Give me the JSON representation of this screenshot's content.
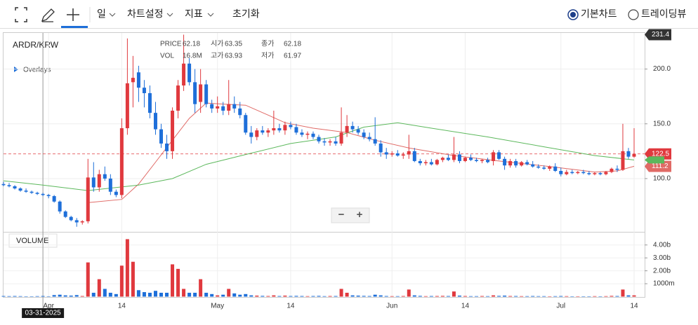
{
  "toolbar": {
    "items": [
      "일",
      "차트설정",
      "지표",
      "초기화"
    ],
    "options": [
      "기본차트",
      "트레이딩뷰"
    ]
  },
  "chart_data": {
    "type": "candlestick",
    "title": "ARDR/KRW",
    "overlays": "Overlays",
    "volume_title": "VOLUME",
    "zoom": [
      "−",
      "+"
    ],
    "up_color": "#e0393e",
    "down_color": "#1e6fd9",
    "info": [
      {
        "label": "PRICE",
        "value": 62.18
      },
      {
        "label": "시가",
        "value": 63.35
      },
      {
        "label": "종가",
        "value": 62.18
      },
      {
        "label": "VOL",
        "value": "16.8M"
      },
      {
        "label": "고가",
        "value": 63.93
      },
      {
        "label": "저가",
        "value": 61.97
      }
    ],
    "crosshair": {
      "x": "2025-03-31",
      "label": "03-31-2025"
    },
    "x": [
      "2025-03-24",
      "2025-03-25",
      "2025-03-26",
      "2025-03-27",
      "2025-03-28",
      "2025-03-29",
      "2025-03-30",
      "2025-03-31",
      "2025-04-01",
      "2025-04-02",
      "2025-04-03",
      "2025-04-04",
      "2025-04-05",
      "2025-04-06",
      "2025-04-07",
      "2025-04-08",
      "2025-04-09",
      "2025-04-10",
      "2025-04-11",
      "2025-04-12",
      "2025-04-13",
      "2025-04-14",
      "2025-04-15",
      "2025-04-16",
      "2025-04-17",
      "2025-04-18",
      "2025-04-19",
      "2025-04-20",
      "2025-04-21",
      "2025-04-22",
      "2025-04-23",
      "2025-04-24",
      "2025-04-25",
      "2025-04-26",
      "2025-04-27",
      "2025-04-28",
      "2025-04-29",
      "2025-04-30",
      "2025-05-01",
      "2025-05-02",
      "2025-05-03",
      "2025-05-04",
      "2025-05-05",
      "2025-05-06",
      "2025-05-07",
      "2025-05-08",
      "2025-05-09",
      "2025-05-10",
      "2025-05-11",
      "2025-05-12",
      "2025-05-13",
      "2025-05-14",
      "2025-05-15",
      "2025-05-16",
      "2025-05-17",
      "2025-05-18",
      "2025-05-19",
      "2025-05-20",
      "2025-05-21",
      "2025-05-22",
      "2025-05-23",
      "2025-05-24",
      "2025-05-25",
      "2025-05-26",
      "2025-05-27",
      "2025-05-28",
      "2025-05-29",
      "2025-05-30",
      "2025-05-31",
      "2025-06-01",
      "2025-06-02",
      "2025-06-03",
      "2025-06-04",
      "2025-06-05",
      "2025-06-06",
      "2025-06-07",
      "2025-06-08",
      "2025-06-09",
      "2025-06-10",
      "2025-06-11",
      "2025-06-12",
      "2025-06-13",
      "2025-06-14",
      "2025-06-15",
      "2025-06-16",
      "2025-06-17",
      "2025-06-18",
      "2025-06-19",
      "2025-06-20",
      "2025-06-21",
      "2025-06-22",
      "2025-06-23",
      "2025-06-24",
      "2025-06-25",
      "2025-06-26",
      "2025-06-27",
      "2025-06-28",
      "2025-06-29",
      "2025-06-30",
      "2025-07-01",
      "2025-07-02",
      "2025-07-03",
      "2025-07-04",
      "2025-07-05",
      "2025-07-06",
      "2025-07-07",
      "2025-07-08",
      "2025-07-09",
      "2025-07-10",
      "2025-07-11",
      "2025-07-12",
      "2025-07-13",
      "2025-07-14"
    ],
    "open": [
      95,
      94,
      93,
      91,
      89,
      88,
      87,
      86,
      85,
      84,
      79,
      70,
      65,
      62,
      60,
      61,
      101,
      92,
      104,
      100,
      88,
      85,
      146,
      188,
      197,
      183,
      178,
      160,
      145,
      132,
      125,
      162,
      185,
      205,
      188,
      170,
      186,
      168,
      164,
      166,
      162,
      168,
      164,
      158,
      142,
      138,
      144,
      142,
      144,
      146,
      144,
      149,
      147,
      142,
      140,
      141,
      138,
      134,
      133,
      134,
      132,
      142,
      148,
      145,
      142,
      138,
      136,
      132,
      124,
      122,
      123,
      121,
      122,
      125,
      116,
      114,
      115,
      113,
      117,
      119,
      117,
      122,
      116,
      119,
      117,
      116,
      117,
      116,
      124,
      118,
      112,
      116,
      112,
      115,
      113,
      111,
      110,
      109,
      111,
      107,
      104,
      106,
      105,
      106,
      105,
      104,
      105,
      104,
      106,
      109,
      108,
      125,
      120
    ],
    "high": [
      97,
      96,
      94,
      92,
      91,
      89,
      88,
      87,
      86,
      85,
      80,
      71,
      66,
      64,
      62,
      118,
      115,
      108,
      111,
      104,
      90,
      155,
      228,
      212,
      203,
      190,
      185,
      170,
      150,
      140,
      165,
      190,
      231.4,
      210,
      200,
      200,
      190,
      172,
      175,
      170,
      190,
      175,
      170,
      160,
      148,
      146,
      148,
      146,
      162,
      150,
      152,
      152,
      150,
      145,
      143,
      143,
      140,
      137,
      136,
      138,
      165,
      158,
      152,
      148,
      145,
      142,
      156,
      135,
      128,
      125,
      126,
      124,
      140,
      128,
      118,
      117,
      118,
      118,
      120,
      122,
      138,
      125,
      120,
      122,
      119,
      118,
      119,
      126,
      126,
      120,
      118,
      118,
      116,
      117,
      116,
      113,
      112,
      112,
      114,
      110,
      108,
      108,
      107,
      108,
      107,
      106,
      106,
      107,
      110,
      112,
      150,
      128,
      146
    ],
    "low": [
      93,
      92,
      90,
      88,
      87,
      86,
      85,
      84,
      82,
      78,
      68,
      64,
      61,
      56,
      58,
      59,
      88,
      88,
      98,
      85,
      83,
      82,
      140,
      165,
      170,
      165,
      155,
      140,
      128,
      118,
      118,
      155,
      180,
      185,
      160,
      160,
      165,
      160,
      160,
      158,
      158,
      160,
      155,
      140,
      132,
      135,
      140,
      138,
      140,
      142,
      140,
      145,
      140,
      138,
      136,
      136,
      132,
      130,
      130,
      130,
      130,
      138,
      142,
      140,
      136,
      134,
      130,
      120,
      118,
      120,
      120,
      118,
      118,
      115,
      112,
      112,
      112,
      112,
      115,
      116,
      115,
      114,
      115,
      116,
      115,
      114,
      114,
      112,
      117,
      108,
      110,
      110,
      111,
      112,
      110,
      109,
      108,
      107,
      106,
      102,
      103,
      104,
      104,
      104,
      103,
      103,
      103,
      103,
      105,
      106,
      107,
      118,
      119
    ],
    "close": [
      94,
      93,
      91,
      89,
      88,
      87,
      86,
      85,
      84,
      79,
      70,
      65,
      62,
      60,
      61,
      101,
      92,
      104,
      100,
      88,
      85,
      146,
      187,
      192,
      183,
      178,
      160,
      145,
      132,
      125,
      162,
      185,
      205,
      188,
      168,
      186,
      168,
      164,
      166,
      162,
      168,
      164,
      158,
      142,
      138,
      144,
      142,
      144,
      146,
      144,
      149,
      147,
      142,
      140,
      141,
      138,
      134,
      133,
      134,
      132,
      142,
      148,
      145,
      142,
      138,
      136,
      132,
      124,
      122,
      123,
      121,
      122,
      125,
      116,
      114,
      115,
      113,
      117,
      119,
      117,
      122,
      116,
      119,
      117,
      116,
      117,
      115,
      124,
      118,
      112,
      116,
      112,
      115,
      113,
      111,
      110,
      109,
      111,
      107,
      104,
      106,
      105,
      106,
      105,
      104,
      105,
      104,
      106,
      109,
      108,
      125,
      120,
      122.5
    ],
    "volume": [
      0.05,
      0.04,
      0.05,
      0.04,
      0.03,
      0.03,
      0.04,
      0.05,
      0.03,
      0.12,
      0.15,
      0.1,
      0.08,
      0.12,
      0.05,
      2.65,
      0.3,
      1.35,
      0.6,
      0.3,
      0.2,
      2.4,
      4.45,
      2.7,
      0.5,
      0.35,
      0.3,
      0.45,
      0.3,
      0.3,
      2.5,
      2.15,
      0.6,
      0.3,
      0.3,
      1.35,
      0.3,
      0.2,
      0.1,
      0.15,
      0.6,
      0.25,
      0.15,
      0.2,
      0.1,
      0.08,
      0.06,
      0.05,
      0.1,
      0.05,
      0.08,
      0.05,
      0.06,
      0.05,
      0.04,
      0.05,
      0.06,
      0.04,
      0.05,
      0.05,
      0.6,
      0.3,
      0.1,
      0.08,
      0.06,
      0.05,
      0.15,
      0.1,
      0.05,
      0.04,
      0.04,
      0.05,
      0.55,
      0.1,
      0.06,
      0.04,
      0.05,
      0.05,
      0.06,
      0.05,
      0.4,
      0.08,
      0.05,
      0.04,
      0.04,
      0.05,
      0.04,
      0.1,
      0.06,
      0.08,
      0.05,
      0.05,
      0.04,
      0.04,
      0.05,
      0.04,
      0.04,
      0.03,
      0.04,
      0.05,
      0.04,
      0.03,
      0.03,
      0.03,
      0.03,
      0.04,
      0.03,
      0.04,
      0.06,
      0.05,
      0.55,
      0.1,
      0.1
    ],
    "ma": [
      {
        "color": "#e06a66",
        "x": [
          "2025-04-08",
          "2025-04-14",
          "2025-04-17",
          "2025-04-20",
          "2025-04-23",
          "2025-04-26",
          "2025-04-29",
          "2025-05-02",
          "2025-05-06",
          "2025-05-10",
          "2025-05-13",
          "2025-05-18",
          "2025-05-24",
          "2025-05-29",
          "2025-06-04",
          "2025-06-12",
          "2025-06-20",
          "2025-06-29",
          "2025-07-07",
          "2025-07-11",
          "2025-07-14"
        ],
        "values": [
          78,
          81,
          95,
          115,
          135,
          155,
          169,
          168,
          167,
          158,
          151,
          146,
          142,
          135,
          128,
          121,
          116,
          111,
          106,
          107,
          111.2
        ]
      },
      {
        "color": "#5cb85c",
        "x": [
          "2025-03-24",
          "2025-03-31",
          "2025-04-08",
          "2025-04-17",
          "2025-04-23",
          "2025-04-29",
          "2025-05-06",
          "2025-05-14",
          "2025-05-22",
          "2025-05-27",
          "2025-06-02",
          "2025-06-08",
          "2025-06-18",
          "2025-06-28",
          "2025-07-07",
          "2025-07-14"
        ],
        "values": [
          98,
          94,
          89,
          94,
          100,
          113,
          122,
          132,
          138,
          147,
          151,
          146,
          138,
          129,
          121,
          117
        ]
      }
    ],
    "ylim": [
      52,
      233
    ],
    "yticks": [
      {
        "value": 100,
        "label": "100.0"
      },
      {
        "value": 150,
        "label": "150.0"
      },
      {
        "value": 200,
        "label": "200.0"
      }
    ],
    "volume_ylim": [
      0,
      4.8
    ],
    "volume_yticks": [
      {
        "value": 4,
        "label": "4.00b"
      },
      {
        "value": 3,
        "label": "3.00b"
      },
      {
        "value": 2,
        "label": "2.00b"
      },
      {
        "value": 1,
        "label": "1000m"
      }
    ],
    "xticks": [
      {
        "value": "2025-04-01",
        "label": "Apr"
      },
      {
        "value": "2025-04-14",
        "label": "14"
      },
      {
        "value": "2025-05-01",
        "label": "May"
      },
      {
        "value": "2025-05-14",
        "label": "14"
      },
      {
        "value": "2025-06-01",
        "label": "Jun"
      },
      {
        "value": "2025-06-14",
        "label": "14"
      },
      {
        "value": "2025-07-01",
        "label": "Jul"
      },
      {
        "value": "2025-07-14",
        "label": "14"
      }
    ],
    "grid": true
  }
}
